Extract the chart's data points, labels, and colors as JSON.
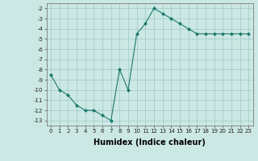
{
  "xlabel": "Humidex (Indice chaleur)",
  "x_data": [
    0,
    1,
    2,
    3,
    4,
    5,
    6,
    7,
    8,
    9,
    10,
    11,
    12,
    13,
    14,
    15,
    16,
    17,
    18,
    19,
    20,
    21,
    22,
    23
  ],
  "y_data": [
    -8.5,
    -10.0,
    -10.5,
    -11.5,
    -12.0,
    -12.0,
    -12.5,
    -13.0,
    -8.0,
    -10.0,
    -4.5,
    -3.5,
    -2.0,
    -2.5,
    -3.0,
    -3.5,
    -4.0,
    -4.5,
    -4.5,
    -4.5,
    -4.5,
    -4.5,
    -4.5,
    -4.5
  ],
  "line_color": "#1a7a6e",
  "marker": "D",
  "marker_size": 2,
  "line_width": 0.8,
  "xlim": [
    -0.5,
    23.5
  ],
  "ylim": [
    -13.5,
    -1.5
  ],
  "yticks": [
    -2,
    -3,
    -4,
    -5,
    -6,
    -7,
    -8,
    -9,
    -10,
    -11,
    -12,
    -13
  ],
  "xticks": [
    0,
    1,
    2,
    3,
    4,
    5,
    6,
    7,
    8,
    9,
    10,
    11,
    12,
    13,
    14,
    15,
    16,
    17,
    18,
    19,
    20,
    21,
    22,
    23
  ],
  "bg_color": "#cce8e4",
  "grid_color": "#9dc8c3",
  "tick_fontsize": 5.0,
  "label_fontsize": 7,
  "label_fontweight": "bold"
}
